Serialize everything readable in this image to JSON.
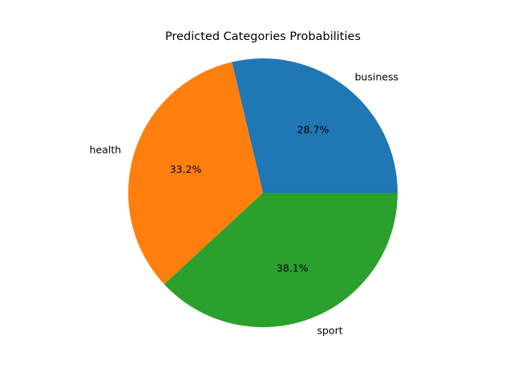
{
  "chart_data": {
    "type": "pie",
    "title": "Predicted Categories Probabilities",
    "categories": [
      "business",
      "health",
      "sport"
    ],
    "values": [
      28.7,
      33.2,
      38.1
    ],
    "percent_labels": [
      "28.7%",
      "33.2%",
      "38.1%"
    ],
    "colors": [
      "#1f77b4",
      "#ff7f0e",
      "#2ca02c"
    ],
    "start_angle_deg": 0,
    "direction": "counterclockwise",
    "legend": "none"
  }
}
